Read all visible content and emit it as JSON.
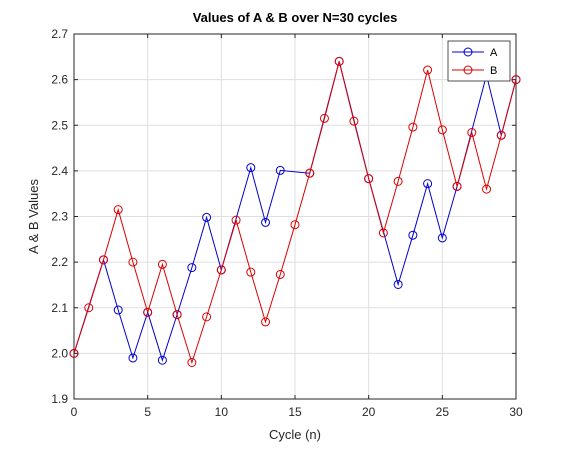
{
  "chart_data": {
    "type": "line",
    "title": "Values of A & B over N=30 cycles",
    "xlabel": "Cycle (n)",
    "ylabel": "A & B Values",
    "xlim": [
      0,
      30
    ],
    "ylim": [
      1.9,
      2.7
    ],
    "xticks": [
      0,
      5,
      10,
      15,
      20,
      25,
      30
    ],
    "yticks": [
      1.9,
      2.0,
      2.1,
      2.2,
      2.3,
      2.4,
      2.5,
      2.6,
      2.7
    ],
    "grid": true,
    "legend_position": "top-right",
    "series": [
      {
        "name": "A",
        "color": "#0000cc",
        "marker": "circle",
        "x": [
          0,
          2,
          3,
          4,
          5,
          6,
          7,
          8,
          9,
          10,
          12,
          13,
          14,
          16,
          18,
          20,
          22,
          23,
          24,
          25,
          26,
          28,
          29,
          30
        ],
        "y": [
          2.0,
          2.205,
          2.095,
          1.99,
          2.09,
          1.985,
          2.085,
          2.188,
          2.298,
          2.183,
          2.407,
          2.287,
          2.401,
          2.395,
          2.64,
          2.383,
          2.151,
          2.259,
          2.372,
          2.253,
          2.366,
          2.61,
          2.478,
          2.6
        ]
      },
      {
        "name": "B",
        "color": "#dd0000",
        "marker": "circle",
        "x": [
          0,
          1,
          2,
          3,
          4,
          5,
          6,
          7,
          8,
          9,
          10,
          11,
          12,
          13,
          14,
          15,
          16,
          17,
          18,
          19,
          20,
          21,
          22,
          23,
          24,
          25,
          26,
          27,
          28,
          29,
          30
        ],
        "y": [
          2.0,
          2.1,
          2.205,
          2.315,
          2.2,
          2.09,
          2.195,
          2.085,
          1.98,
          2.08,
          2.183,
          2.292,
          2.178,
          2.069,
          2.173,
          2.282,
          2.395,
          2.515,
          2.64,
          2.509,
          2.383,
          2.264,
          2.377,
          2.496,
          2.621,
          2.49,
          2.366,
          2.484,
          2.36,
          2.478,
          2.6
        ]
      }
    ]
  }
}
